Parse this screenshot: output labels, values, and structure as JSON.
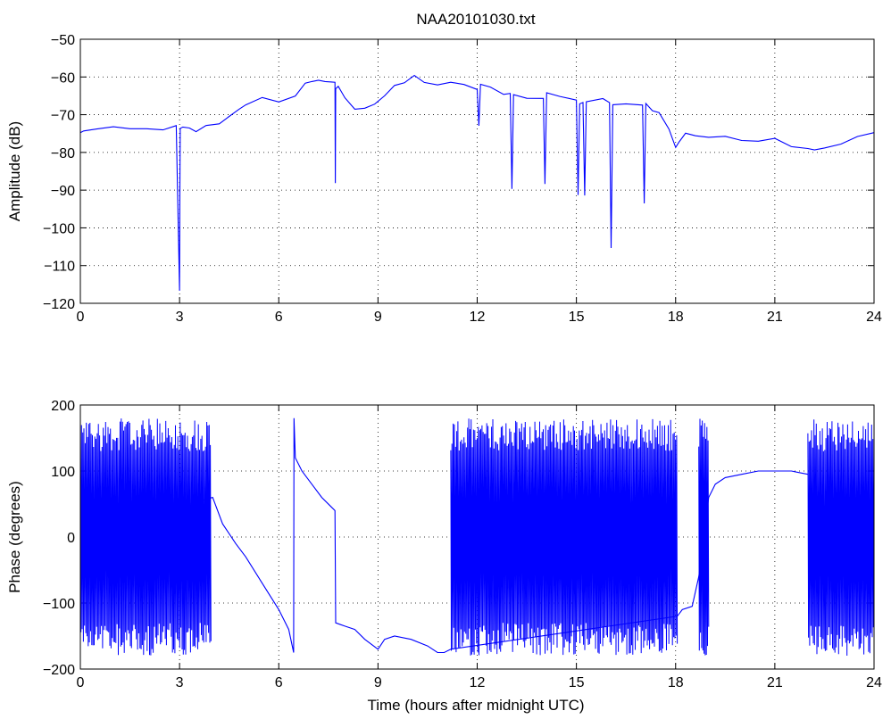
{
  "chart_data": [
    {
      "type": "line",
      "title": "NAA20101030.txt",
      "xlabel": "",
      "ylabel": "Amplitude (dB)",
      "xlim": [
        0,
        24
      ],
      "ylim": [
        -120,
        -50
      ],
      "xticks": [
        0,
        3,
        6,
        9,
        12,
        15,
        18,
        21,
        24
      ],
      "yticks": [
        -120,
        -110,
        -100,
        -90,
        -80,
        -70,
        -60,
        -50
      ],
      "grid": true,
      "color": "#0000ff",
      "series": [
        {
          "x": [
            0,
            0.1,
            0.5,
            1.0,
            1.5,
            2.0,
            2.5,
            2.9,
            3.0,
            3.01,
            3.02,
            3.1,
            3.3,
            3.5,
            3.8,
            4.2,
            4.5,
            4.8,
            5.0,
            5.5,
            6.0,
            6.5,
            6.8,
            7.0,
            7.2,
            7.4,
            7.6,
            7.7,
            7.71,
            7.72,
            7.8,
            8.0,
            8.3,
            8.6,
            8.9,
            9.2,
            9.5,
            9.8,
            10.1,
            10.4,
            10.8,
            11.2,
            11.6,
            12.0,
            12.05,
            12.1,
            12.4,
            12.8,
            13.0,
            13.05,
            13.1,
            13.5,
            14.0,
            14.05,
            14.1,
            14.5,
            15.0,
            15.05,
            15.1,
            15.2,
            15.25,
            15.3,
            15.8,
            16.0,
            16.05,
            16.1,
            16.5,
            17.0,
            17.05,
            17.1,
            17.3,
            17.5,
            17.8,
            18.0,
            18.1,
            18.3,
            18.6,
            19.0,
            19.5,
            20.0,
            20.5,
            21.0,
            21.5,
            22.0,
            22.2,
            22.5,
            23.0,
            23.5,
            24.0
          ],
          "y": [
            -75,
            -74,
            -74,
            -74,
            -74,
            -74,
            -73.5,
            -73.5,
            -117,
            -90,
            -74,
            -73,
            -74,
            -74,
            -73,
            -72,
            -70,
            -69,
            -68,
            -66,
            -66,
            -65,
            -62,
            -61,
            -60.5,
            -61,
            -62,
            -62,
            -88,
            -63,
            -63,
            -65,
            -68,
            -68,
            -67,
            -65,
            -63,
            -61.5,
            -60,
            -61,
            -62,
            -62,
            -62.5,
            -63,
            -73,
            -62.5,
            -63,
            -64,
            -64.5,
            -89,
            -65,
            -65.5,
            -66,
            -88,
            -64,
            -65,
            -66,
            -92,
            -67,
            -66,
            -91,
            -66,
            -66,
            -66,
            -105,
            -67,
            -67,
            -67,
            -94,
            -67,
            -69,
            -70,
            -74,
            -79,
            -76.5,
            -75,
            -75.5,
            -76,
            -76,
            -76.5,
            -77,
            -77,
            -78,
            -79,
            -80,
            -79,
            -77,
            -76,
            -75
          ]
        }
      ]
    },
    {
      "type": "line",
      "title": "",
      "xlabel": "Time (hours after midnight UTC)",
      "ylabel": "Phase (degrees)",
      "xlim": [
        0,
        24
      ],
      "ylim": [
        -200,
        200
      ],
      "xticks": [
        0,
        3,
        6,
        9,
        12,
        15,
        18,
        21,
        24
      ],
      "yticks": [
        -200,
        -100,
        0,
        100,
        200
      ],
      "grid": true,
      "color": "#0000ff",
      "noise_bands": [
        [
          0,
          3.95
        ],
        [
          11.2,
          18.05
        ],
        [
          18.7,
          19.0
        ],
        [
          22.0,
          24.0
        ]
      ],
      "series": [
        {
          "x": [
            0,
            4.0,
            4.3,
            4.7,
            5.0,
            5.5,
            6.0,
            6.3,
            6.45,
            6.46,
            6.5,
            6.7,
            7.0,
            7.3,
            7.6,
            7.7,
            7.72,
            8.0,
            8.3,
            8.6,
            9.0,
            9.2,
            9.5,
            10.0,
            10.5,
            10.8,
            11.0,
            11.2,
            18.05,
            18.2,
            18.5,
            18.7,
            19.0,
            19.2,
            19.5,
            20.0,
            20.5,
            21.0,
            21.5,
            22.0
          ],
          "y": [
            0,
            60,
            20,
            -10,
            -30,
            -70,
            -110,
            -140,
            -175,
            180,
            120,
            100,
            80,
            60,
            45,
            40,
            -130,
            -135,
            -140,
            -155,
            -170,
            -155,
            -150,
            -155,
            -165,
            -175,
            -175,
            -170,
            -120,
            -110,
            -105,
            -60,
            60,
            80,
            90,
            95,
            100,
            100,
            100,
            95
          ]
        }
      ]
    }
  ]
}
